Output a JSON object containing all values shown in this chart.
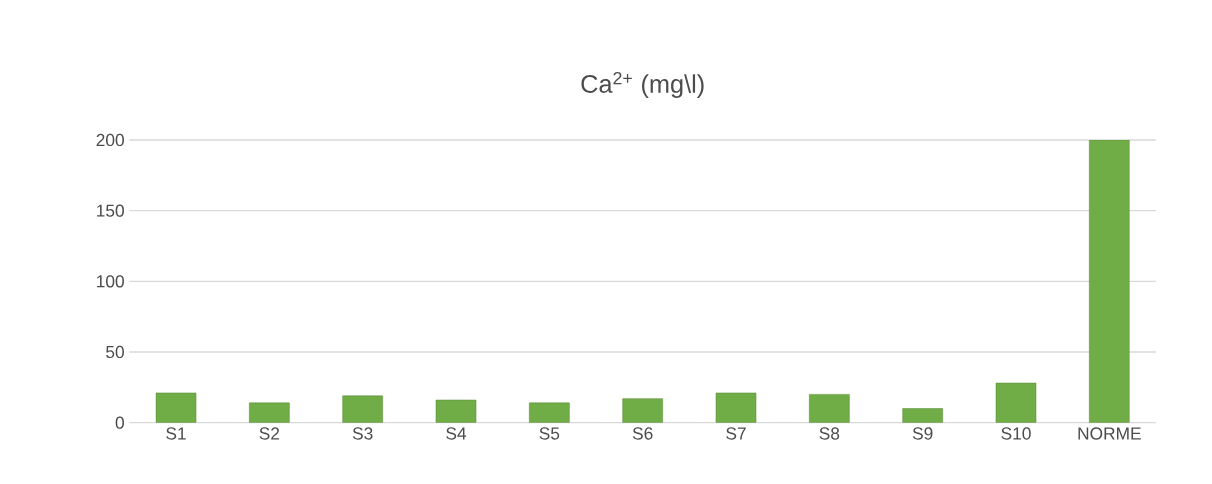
{
  "chart_data": {
    "type": "bar",
    "title": "Ca$^{2+}$ (mg\\l)",
    "categories": [
      "S1",
      "S2",
      "S3",
      "S4",
      "S5",
      "S6",
      "S7",
      "S8",
      "S9",
      "S10",
      "NORME"
    ],
    "values": [
      21,
      14,
      19,
      16,
      14,
      17,
      21,
      20,
      10,
      28,
      200
    ],
    "color": "#70ad47",
    "ylim": [
      0,
      200
    ],
    "yticks": [
      0,
      50,
      100,
      150,
      200
    ],
    "grid": "y"
  }
}
